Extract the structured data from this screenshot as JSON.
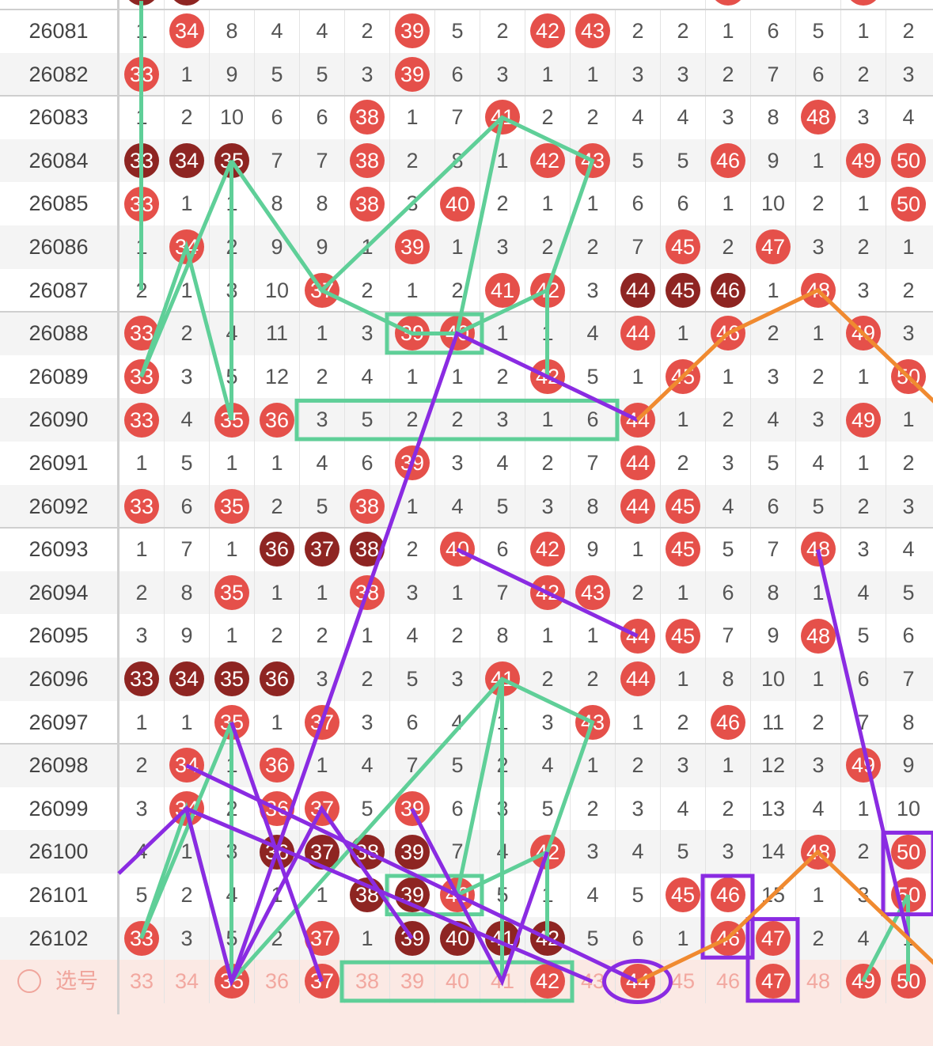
{
  "columns": [
    "33",
    "34",
    "35",
    "36",
    "37",
    "38",
    "39",
    "40",
    "41",
    "42",
    "43",
    "44",
    "45",
    "46",
    "47",
    "48",
    "49",
    "50"
  ],
  "rows": [
    {
      "issue": "26081",
      "cells": [
        "1",
        "r:34",
        "8",
        "4",
        "4",
        "2",
        "r:39",
        "5",
        "2",
        "r:42",
        "r:43",
        "2",
        "2",
        "1",
        "6",
        "5",
        "1",
        "2"
      ]
    },
    {
      "issue": "26082",
      "cells": [
        "r:33",
        "1",
        "9",
        "5",
        "5",
        "3",
        "r:39",
        "6",
        "3",
        "1",
        "1",
        "3",
        "3",
        "2",
        "7",
        "6",
        "2",
        "3"
      ]
    },
    {
      "issue": "26083",
      "cells": [
        "1",
        "2",
        "10",
        "6",
        "6",
        "r:38",
        "1",
        "7",
        "r:41",
        "2",
        "2",
        "4",
        "4",
        "3",
        "8",
        "r:48",
        "3",
        "4"
      ]
    },
    {
      "issue": "26084",
      "cells": [
        "d:33",
        "d:34",
        "d:35",
        "7",
        "7",
        "r:38",
        "2",
        "8",
        "1",
        "r:42",
        "r:43",
        "5",
        "5",
        "r:46",
        "9",
        "1",
        "r:49",
        "r:50"
      ]
    },
    {
      "issue": "26085",
      "cells": [
        "r:33",
        "1",
        "1",
        "8",
        "8",
        "r:38",
        "3",
        "r:40",
        "2",
        "1",
        "1",
        "6",
        "6",
        "1",
        "10",
        "2",
        "1",
        "r:50"
      ]
    },
    {
      "issue": "26086",
      "cells": [
        "1",
        "r:34",
        "2",
        "9",
        "9",
        "1",
        "r:39",
        "1",
        "3",
        "2",
        "2",
        "7",
        "r:45",
        "2",
        "r:47",
        "3",
        "2",
        "1"
      ]
    },
    {
      "issue": "26087",
      "cells": [
        "2",
        "1",
        "3",
        "10",
        "r:37",
        "2",
        "1",
        "2",
        "r:41",
        "r:42",
        "3",
        "d:44",
        "d:45",
        "d:46",
        "1",
        "r:48",
        "3",
        "2"
      ]
    },
    {
      "issue": "26088",
      "cells": [
        "r:33",
        "2",
        "4",
        "11",
        "1",
        "3",
        "r:39",
        "r:40",
        "1",
        "1",
        "4",
        "r:44",
        "1",
        "r:46",
        "2",
        "1",
        "r:49",
        "3"
      ]
    },
    {
      "issue": "26089",
      "cells": [
        "r:33",
        "3",
        "5",
        "12",
        "2",
        "4",
        "1",
        "1",
        "2",
        "r:42",
        "5",
        "1",
        "r:45",
        "1",
        "3",
        "2",
        "1",
        "r:50"
      ]
    },
    {
      "issue": "26090",
      "cells": [
        "r:33",
        "4",
        "r:35",
        "r:36",
        "3",
        "5",
        "2",
        "2",
        "3",
        "1",
        "6",
        "r:44",
        "1",
        "2",
        "4",
        "3",
        "r:49",
        "1"
      ]
    },
    {
      "issue": "26091",
      "cells": [
        "1",
        "5",
        "1",
        "1",
        "4",
        "6",
        "r:39",
        "3",
        "4",
        "2",
        "7",
        "r:44",
        "2",
        "3",
        "5",
        "4",
        "1",
        "2"
      ]
    },
    {
      "issue": "26092",
      "cells": [
        "r:33",
        "6",
        "r:35",
        "2",
        "5",
        "r:38",
        "1",
        "4",
        "5",
        "3",
        "8",
        "r:44",
        "r:45",
        "4",
        "6",
        "5",
        "2",
        "3"
      ]
    },
    {
      "issue": "26093",
      "cells": [
        "1",
        "7",
        "1",
        "d:36",
        "d:37",
        "d:38",
        "2",
        "r:40",
        "6",
        "r:42",
        "9",
        "1",
        "r:45",
        "5",
        "7",
        "r:48",
        "3",
        "4"
      ]
    },
    {
      "issue": "26094",
      "cells": [
        "2",
        "8",
        "r:35",
        "1",
        "1",
        "r:38",
        "3",
        "1",
        "7",
        "r:42",
        "r:43",
        "2",
        "1",
        "6",
        "8",
        "1",
        "4",
        "5"
      ]
    },
    {
      "issue": "26095",
      "cells": [
        "3",
        "9",
        "1",
        "2",
        "2",
        "1",
        "4",
        "2",
        "8",
        "1",
        "1",
        "r:44",
        "r:45",
        "7",
        "9",
        "r:48",
        "5",
        "6"
      ]
    },
    {
      "issue": "26096",
      "cells": [
        "d:33",
        "d:34",
        "d:35",
        "d:36",
        "3",
        "2",
        "5",
        "3",
        "r:41",
        "2",
        "2",
        "r:44",
        "1",
        "8",
        "10",
        "1",
        "6",
        "7"
      ]
    },
    {
      "issue": "26097",
      "cells": [
        "1",
        "1",
        "r:35",
        "1",
        "r:37",
        "3",
        "6",
        "4",
        "1",
        "3",
        "r:43",
        "1",
        "2",
        "r:46",
        "11",
        "2",
        "7",
        "8"
      ]
    },
    {
      "issue": "26098",
      "cells": [
        "2",
        "r:34",
        "1",
        "r:36",
        "1",
        "4",
        "7",
        "5",
        "2",
        "4",
        "1",
        "2",
        "3",
        "1",
        "12",
        "3",
        "r:49",
        "9"
      ]
    },
    {
      "issue": "26099",
      "cells": [
        "3",
        "r:34",
        "2",
        "r:36",
        "r:37",
        "5",
        "r:39",
        "6",
        "3",
        "5",
        "2",
        "3",
        "4",
        "2",
        "13",
        "4",
        "1",
        "10"
      ]
    },
    {
      "issue": "26100",
      "cells": [
        "4",
        "1",
        "3",
        "d:36",
        "d:37",
        "d:38",
        "d:39",
        "7",
        "4",
        "r:42",
        "3",
        "4",
        "5",
        "3",
        "14",
        "r:48",
        "2",
        "r:50"
      ]
    },
    {
      "issue": "26101",
      "cells": [
        "5",
        "2",
        "4",
        "1",
        "1",
        "d:38",
        "d:39",
        "r:40",
        "5",
        "1",
        "4",
        "5",
        "r:45",
        "r:46",
        "15",
        "1",
        "3",
        "r:50"
      ]
    },
    {
      "issue": "26102",
      "cells": [
        "r:33",
        "3",
        "5",
        "2",
        "r:37",
        "1",
        "d:39",
        "d:40",
        "d:41",
        "d:42",
        "5",
        "6",
        "1",
        "r:46",
        "r:47",
        "2",
        "4",
        "1"
      ]
    }
  ],
  "select_row": {
    "label": "选号",
    "cells": [
      "33",
      "34",
      "r:35",
      "36",
      "r:37",
      "38",
      "39",
      "40",
      "41",
      "r:42",
      "43",
      "r:44",
      "45",
      "46",
      "r:47",
      "48",
      "r:49",
      "r:50"
    ]
  },
  "colors": {
    "red": "#e5504a",
    "dark": "#8e2522",
    "green": "#5fcf98",
    "purple": "#8a2be2",
    "orange": "#f08a30"
  }
}
